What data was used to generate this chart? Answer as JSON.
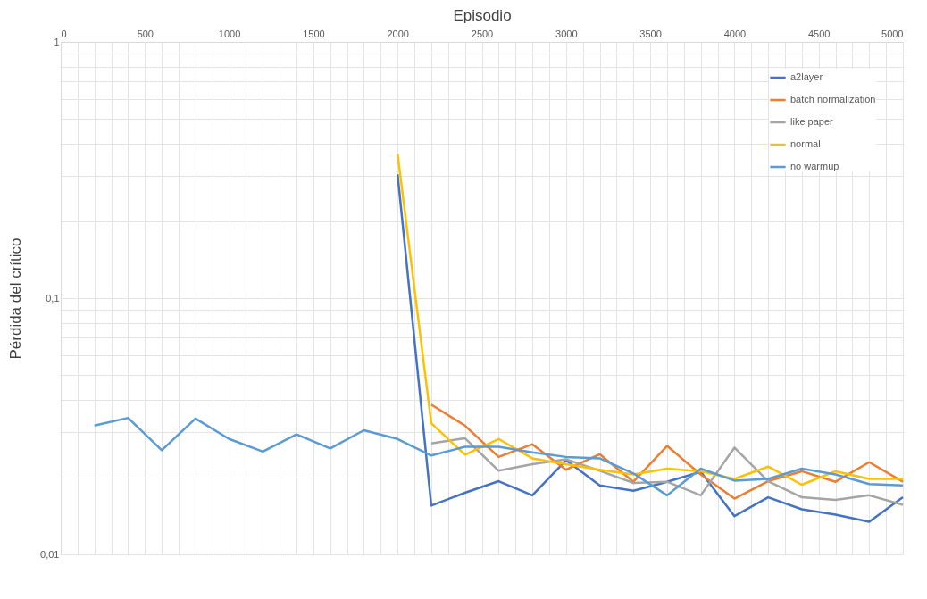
{
  "chart_data": {
    "type": "line",
    "xlabel": "Episodio",
    "ylabel": "Pérdida del crítico",
    "log": "y",
    "grid": true,
    "legend": "top right",
    "marker": "none",
    "line_style": "solid",
    "x": [
      200,
      400,
      600,
      800,
      1000,
      1200,
      1400,
      1600,
      1800,
      2000,
      2200,
      2400,
      2600,
      2800,
      3000,
      3200,
      3400,
      3600,
      3800,
      4000,
      4200,
      4400,
      4600,
      4800,
      5000
    ],
    "xlim": [
      0,
      5000
    ],
    "xticks": [
      0,
      {
        "value": 100,
        "label": null
      },
      {
        "value": 200,
        "label": null
      },
      {
        "value": 300,
        "label": null
      },
      {
        "value": 400,
        "label": null
      },
      500,
      {
        "value": 600,
        "label": null
      },
      {
        "value": 700,
        "label": null
      },
      {
        "value": 800,
        "label": null
      },
      {
        "value": 900,
        "label": null
      },
      1000,
      {
        "value": 1100,
        "label": null
      },
      {
        "value": 1200,
        "label": null
      },
      {
        "value": 1300,
        "label": null
      },
      {
        "value": 1400,
        "label": null
      },
      1500,
      {
        "value": 1600,
        "label": null
      },
      {
        "value": 1700,
        "label": null
      },
      {
        "value": 1800,
        "label": null
      },
      {
        "value": 1900,
        "label": null
      },
      2000,
      {
        "value": 2100,
        "label": null
      },
      {
        "value": 2200,
        "label": null
      },
      {
        "value": 2300,
        "label": null
      },
      {
        "value": 2400,
        "label": null
      },
      2500,
      {
        "value": 2600,
        "label": null
      },
      {
        "value": 2700,
        "label": null
      },
      {
        "value": 2800,
        "label": null
      },
      {
        "value": 2900,
        "label": null
      },
      3000,
      {
        "value": 3100,
        "label": null
      },
      {
        "value": 3200,
        "label": null
      },
      {
        "value": 3300,
        "label": null
      },
      {
        "value": 3400,
        "label": null
      },
      3500,
      {
        "value": 3600,
        "label": null
      },
      {
        "value": 3700,
        "label": null
      },
      {
        "value": 3800,
        "label": null
      },
      {
        "value": 3900,
        "label": null
      },
      4000,
      {
        "value": 4100,
        "label": null
      },
      {
        "value": 4200,
        "label": null
      },
      {
        "value": 4300,
        "label": null
      },
      {
        "value": 4400,
        "label": null
      },
      4500,
      {
        "value": 4600,
        "label": null
      },
      {
        "value": 4700,
        "label": null
      },
      {
        "value": 4800,
        "label": null
      },
      {
        "value": 4900,
        "label": null
      },
      5000
    ],
    "ylim": [
      0.01,
      1
    ],
    "yticks": [
      {
        "value": 0.01,
        "label": "0,01"
      },
      {
        "value": 0.02,
        "label": null
      },
      {
        "value": 0.03,
        "label": null
      },
      {
        "value": 0.04,
        "label": null
      },
      {
        "value": 0.05,
        "label": null
      },
      {
        "value": 0.06,
        "label": null
      },
      {
        "value": 0.07,
        "label": null
      },
      {
        "value": 0.08,
        "label": null
      },
      {
        "value": 0.09,
        "label": null
      },
      {
        "value": 0.1,
        "label": "0,1"
      },
      {
        "value": 0.2,
        "label": null
      },
      {
        "value": 0.3,
        "label": null
      },
      {
        "value": 0.4,
        "label": null
      },
      {
        "value": 0.5,
        "label": null
      },
      {
        "value": 0.6,
        "label": null
      },
      {
        "value": 0.7,
        "label": null
      },
      {
        "value": 0.8,
        "label": null
      },
      {
        "value": 0.9,
        "label": null
      },
      1
    ],
    "series": [
      {
        "name": "a2layer",
        "color": "#4472c4",
        "values": [
          null,
          null,
          null,
          null,
          null,
          null,
          null,
          null,
          null,
          0.305,
          0.0155,
          0.0174,
          0.0193,
          0.017,
          0.0233,
          0.0186,
          0.0177,
          0.0192,
          0.021,
          0.0141,
          0.0167,
          0.015,
          0.0143,
          0.0134,
          0.0167
        ]
      },
      {
        "name": "batch normalization",
        "color": "#ed7d31",
        "values": [
          null,
          null,
          null,
          null,
          null,
          null,
          null,
          null,
          null,
          null,
          0.0384,
          0.0318,
          0.024,
          0.0269,
          0.0214,
          0.0246,
          0.0192,
          0.0265,
          0.0205,
          0.0165,
          0.0193,
          0.0211,
          0.0192,
          0.0229,
          0.0192
        ]
      },
      {
        "name": "like paper",
        "color": "#a5a5a5",
        "values": [
          null,
          null,
          null,
          null,
          null,
          null,
          null,
          null,
          null,
          null,
          0.0271,
          0.0284,
          0.0212,
          0.0225,
          0.0235,
          0.0212,
          0.019,
          0.0192,
          0.017,
          0.0261,
          0.0193,
          0.0167,
          0.0163,
          0.017,
          0.0156
        ]
      },
      {
        "name": "normal",
        "color": "#ffc000",
        "values": [
          null,
          null,
          null,
          null,
          null,
          null,
          null,
          null,
          null,
          0.366,
          0.0325,
          0.0245,
          0.0282,
          0.0237,
          0.0225,
          0.0214,
          0.0205,
          0.0216,
          0.0211,
          0.0197,
          0.022,
          0.0187,
          0.0211,
          0.0197,
          0.0197
        ]
      },
      {
        "name": "no warmup",
        "color": "#5b9bd5",
        "values": [
          0.0318,
          0.0341,
          0.0255,
          0.0339,
          0.0282,
          0.0252,
          0.0294,
          0.0259,
          0.0305,
          0.0282,
          0.0243,
          0.0263,
          0.0263,
          0.025,
          0.024,
          0.0237,
          0.0207,
          0.017,
          0.0216,
          0.0194,
          0.0197,
          0.0216,
          0.0205,
          0.0188,
          0.0186
        ]
      }
    ]
  }
}
